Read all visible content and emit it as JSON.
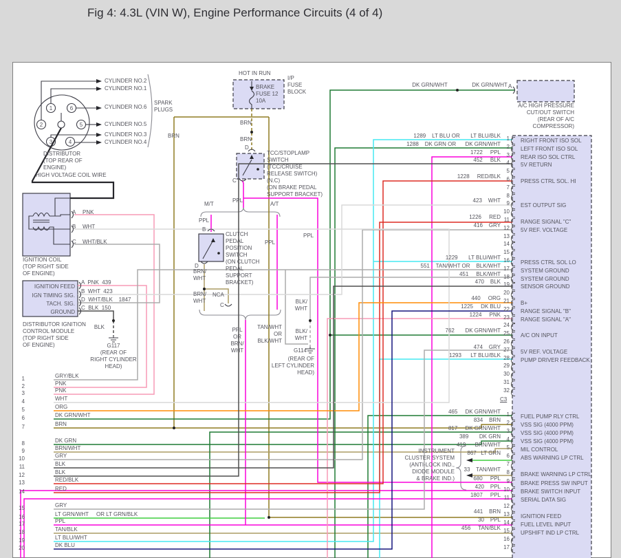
{
  "title": "Fig 4: 4.3L (VIN W), Engine Performance Circuits (4 of 4)",
  "palette": {
    "ppl": "#fa00dc",
    "pnk": "#f79ab6",
    "red": "#dd2c23",
    "org": "#ff8c05",
    "brn": "#8f7b21",
    "tan": "#ac9b64",
    "dk_grn": "#1e7a33",
    "lt_grn": "#3fce3f",
    "lt_blu": "#45e9f2",
    "dk_blu": "#15157d",
    "gry": "#ababab",
    "wht": "#d9d9d9",
    "blk": "#4f4f4f",
    "box_fill": "#dbdbf4"
  },
  "distributor": {
    "caption": [
      "DISTRIBUTOR",
      "(TOP REAR OF",
      "ENGINE)"
    ],
    "terminals": [
      "1",
      "6",
      "2",
      "5",
      "3",
      "4"
    ],
    "cylinders": [
      "CYLINDER NO.2",
      "CYLINDER NO.1",
      "CYLINDER NO.6",
      "CYLINDER NO.5",
      "CYLINDER NO.3",
      "CYLINDER NO.4"
    ],
    "spark_plugs": [
      "SPARK",
      "PLUGS"
    ],
    "hv_wire": "HIGH VOLTAGE COIL WIRE"
  },
  "fuse_block": {
    "hot": "HOT IN RUN",
    "fuse": [
      "BRAKE",
      "FUSE 12",
      "10A"
    ],
    "block": [
      "I/P",
      "FUSE",
      "BLOCK"
    ]
  },
  "tcc_switch": {
    "caption": [
      "TCC/STOPLAMP",
      "SWITCH",
      "(TCC/CRUISE",
      "RELEASE SWITCH)",
      "(N.C)",
      "(ON BRAKE PEDAL",
      "SUPPORT BRACKET)"
    ],
    "term_top": "D",
    "term_bottom": "C"
  },
  "clutch_switch": {
    "caption": [
      "CLUTCH",
      "PEDAL",
      "POSITION",
      "SWITCH",
      "(ON CLUTCH",
      "PEDAL",
      "SUPPORT",
      "BRACKET)"
    ],
    "term_top": "B",
    "term_bottom": "D",
    "nca": "NCA",
    "term_c": "C"
  },
  "ignition_coil": {
    "caption": [
      "IGNITION COIL",
      "(TOP RIGHT SIDE",
      "OF ENGINE)"
    ],
    "term_a": "A",
    "term_b": "B",
    "term_c": "C",
    "wire_a": "PNK",
    "wire_b": "WHT",
    "wire_c": "WHT/BLK"
  },
  "dicm": {
    "rows": [
      "IGNITION FEED",
      "IGN TIMING SIG.",
      "TACH. SIG.",
      "GROUND"
    ],
    "terminals": [
      "A  PNK  439",
      "B  WHT  423",
      "D  WHT/BLK    1847",
      "C  BLK  150"
    ],
    "caption": [
      "DISTRIBUTOR IGNITION",
      "CONTROL MODULE",
      "(TOP RIGHT SIDE",
      "OF ENGINE)"
    ]
  },
  "grounds": {
    "blk": "BLK",
    "g117": [
      "G117",
      "(REAR OF",
      "RIGHT CYLINDER",
      "HEAD)"
    ],
    "g114": [
      "G114",
      "(REAR OF",
      "LEFT CYLINDER",
      "HEAD)"
    ],
    "blkwht": [
      "BLK/",
      "WHT"
    ]
  },
  "ac_switch": {
    "wire_left": "DK GRN/WHT",
    "wire_right": "DK GRN/WHT",
    "term": "A",
    "caption": [
      "A/C HIGH PRESSURE",
      "CUT/OUT SWITCH",
      "(REAR OF A/C",
      "COMPRESSOR)"
    ]
  },
  "cluster": {
    "caption": [
      "INSTRUMENT",
      "CLUSTER SYSTEM",
      "(ANTI-LOCK IND.,",
      "DIODE MODULE",
      "& BRAKE IND.)"
    ]
  },
  "wire_labels": {
    "brn_left": "BRN",
    "brn_d1": "BRN",
    "brn_d2": "BRN",
    "ppl_c": "PPL",
    "mt": "M/T",
    "at": "A/T",
    "ppl_mt": "PPL",
    "ppl_at": "PPL",
    "ppl_1722": "PPL",
    "brnwht": [
      "BRN/",
      "WHT"
    ],
    "ppl_or": [
      "PPL",
      "OR",
      "BRN/",
      "WHT"
    ],
    "tan_or": [
      "TAN/WHT",
      "OR",
      "BLK/WHT"
    ]
  },
  "pcm": {
    "c3_label": "C3",
    "c3_pins": [
      {
        "n": "1",
        "wire": "1289    LT BLU OR       LT BLU/BLK",
        "label": "RIGHT FRONT ISO SOL"
      },
      {
        "n": "2",
        "wire": "1288    DK GRN OR      DK GRN/WHT",
        "label": "LEFT FRONT ISO SOL"
      },
      {
        "n": "3",
        "wire": "1722     PPL",
        "label": "REAR ISO SOL CTRL"
      },
      {
        "n": "4",
        "wire": "452     BLK",
        "label": "5V RETURN"
      },
      {
        "n": "5",
        "wire": "",
        "label": ""
      },
      {
        "n": "6",
        "wire": "1228     RED/BLK",
        "label": "PRESS CTRL SOL. HI"
      },
      {
        "n": "7",
        "wire": "",
        "label": ""
      },
      {
        "n": "8",
        "wire": "",
        "label": ""
      },
      {
        "n": "9",
        "wire": "423    WHT",
        "label": "EST OUTPUT SIG"
      },
      {
        "n": "10",
        "wire": "",
        "label": ""
      },
      {
        "n": "11",
        "wire": "1226     RED",
        "label": "RANGE SIGNAL \"C\""
      },
      {
        "n": "12",
        "wire": "416    GRY",
        "label": "5V REF. VOLTAGE"
      },
      {
        "n": "13",
        "wire": "",
        "label": ""
      },
      {
        "n": "14",
        "wire": "",
        "label": ""
      },
      {
        "n": "15",
        "wire": "",
        "label": ""
      },
      {
        "n": "16",
        "wire": "1229       LT BLU/WHT",
        "label": "PRESS CTRL SOL LO"
      },
      {
        "n": "17",
        "wire": "551    TAN/WHT OR    BLK/WHT",
        "label": "SYSTEM GROUND"
      },
      {
        "n": "18",
        "wire": "451     BLK/WHT",
        "label": "SYSTEM GROUND"
      },
      {
        "n": "19",
        "wire": "470    BLK",
        "label": "SENSOR GROUND"
      },
      {
        "n": "20",
        "wire": "",
        "label": ""
      },
      {
        "n": "21",
        "wire": "440     ORG",
        "label": "B+"
      },
      {
        "n": "22",
        "wire": "1225     DK BLU",
        "label": "RANGE SIGNAL \"B\""
      },
      {
        "n": "23",
        "wire": "1224     PNK",
        "label": "RANGE SIGNAL \"A\""
      },
      {
        "n": "24",
        "wire": "",
        "label": ""
      },
      {
        "n": "25",
        "wire": "762       DK GRN/WHT",
        "label": "A/C ON INPUT"
      },
      {
        "n": "26",
        "wire": "",
        "label": ""
      },
      {
        "n": "27",
        "wire": "474    GRY",
        "label": "5V REF. VOLTAGE"
      },
      {
        "n": "28",
        "wire": "1293      LT BLU/BLK",
        "label": "PUMP DRIVER FEEDBACK"
      },
      {
        "n": "29",
        "wire": "",
        "label": ""
      },
      {
        "n": "30",
        "wire": "",
        "label": ""
      },
      {
        "n": "31",
        "wire": "",
        "label": ""
      },
      {
        "n": "32",
        "wire": "",
        "label": ""
      }
    ],
    "c2_pins": [
      {
        "n": "1",
        "wire": "465     DK GRN/WHT",
        "label": "FUEL PUMP RLY CTRL"
      },
      {
        "n": "2",
        "wire": "834    BRN",
        "label": "VSS SIG (4000 PPM)"
      },
      {
        "n": "3",
        "wire": "817     DK GRN/WHT",
        "label": "VSS SIG (4000 PPM)"
      },
      {
        "n": "4",
        "wire": "389       DK GRN",
        "label": "VSS SIG (4000 PPM)"
      },
      {
        "n": "5",
        "wire": "419      BRN/WHT",
        "label": "MIL CONTROL"
      },
      {
        "n": "6",
        "wire": "867   LT GRN",
        "label": "ABS WARNING LP CTRL"
      },
      {
        "n": "7",
        "wire": "",
        "label": ""
      },
      {
        "n": "8",
        "wire": "33    TAN/WHT",
        "label": "BRAKE WARNING LP CTRL"
      },
      {
        "n": "9",
        "wire": "680     PPL",
        "label": "BRAKE PRESS SW INPUT"
      },
      {
        "n": "10",
        "wire": "420    PPL",
        "label": "BRAKE SWITCH INPUT"
      },
      {
        "n": "11",
        "wire": "1807     PPL",
        "label": "SERIAL DATA SIG"
      },
      {
        "n": "12",
        "wire": "",
        "label": ""
      },
      {
        "n": "13",
        "wire": "441    BRN",
        "label": "IGNITION FEED"
      },
      {
        "n": "14",
        "wire": "30    PPL",
        "label": "FUEL LEVEL INPUT"
      },
      {
        "n": "15",
        "wire": "456     TAN/BLK",
        "label": "UPSHIFT IND LP CTRL"
      },
      {
        "n": "16",
        "wire": "",
        "label": ""
      },
      {
        "n": "17",
        "wire": "",
        "label": ""
      }
    ]
  },
  "left_wires": [
    {
      "n": "1",
      "label": "GRY/BLK"
    },
    {
      "n": "2",
      "label": "PNK"
    },
    {
      "n": "3",
      "label": "PNK"
    },
    {
      "n": "4",
      "label": "WHT"
    },
    {
      "n": "5",
      "label": "ORG"
    },
    {
      "n": "6",
      "label": "DK GRN/WHT"
    },
    {
      "n": "7",
      "label": "BRN"
    },
    {
      "n": "8",
      "label": "DK GRN"
    },
    {
      "n": "9",
      "label": "BRN/WHT"
    },
    {
      "n": "10",
      "label": "GRY"
    },
    {
      "n": "11",
      "label": "BLK"
    },
    {
      "n": "12",
      "label": "BLK"
    },
    {
      "n": "13",
      "label": "RED/BLK"
    },
    {
      "n": "14",
      "label": "RED"
    },
    {
      "n": "15",
      "label": "GRY"
    },
    {
      "n": "16",
      "label": "LT GRN/WHT     OR LT GRN/BLK"
    },
    {
      "n": "17",
      "label": "PPL"
    },
    {
      "n": "18",
      "label": "TAN/BLK"
    },
    {
      "n": "19",
      "label": "LT BLU/WHT"
    },
    {
      "n": "20",
      "label": "DK BLU"
    }
  ]
}
